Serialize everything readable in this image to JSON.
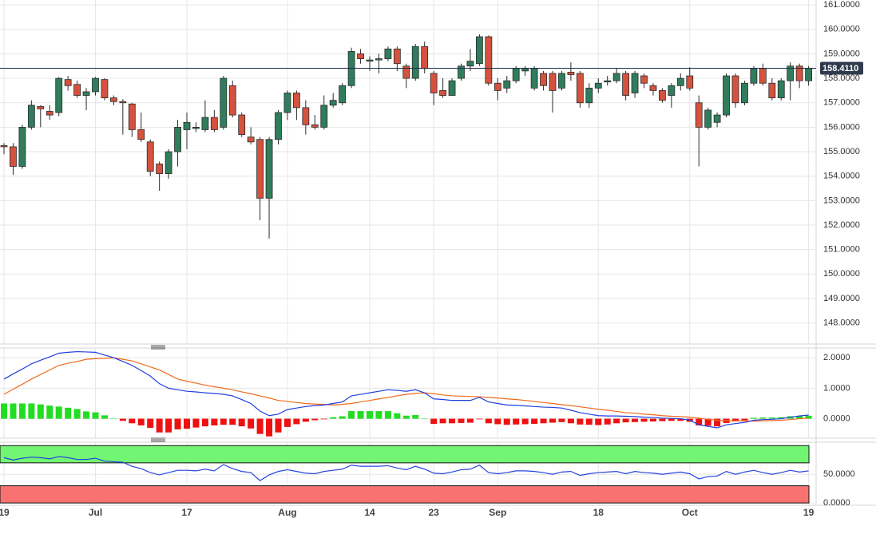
{
  "chart_data": [
    {
      "type": "candlestick",
      "categories": [
        "19",
        null,
        null,
        null,
        null,
        null,
        null,
        null,
        null,
        null,
        "Jul",
        null,
        null,
        null,
        null,
        null,
        null,
        null,
        null,
        null,
        "17",
        null,
        null,
        null,
        null,
        null,
        null,
        null,
        null,
        null,
        null,
        "Aug",
        null,
        null,
        null,
        null,
        null,
        null,
        null,
        null,
        "14",
        null,
        null,
        null,
        null,
        null,
        null,
        "23",
        null,
        null,
        null,
        null,
        null,
        null,
        "Sep",
        null,
        null,
        null,
        null,
        null,
        null,
        null,
        null,
        null,
        null,
        "18",
        null,
        null,
        null,
        null,
        null,
        null,
        null,
        null,
        null,
        "Oct",
        null,
        null,
        null,
        null,
        null,
        null,
        null,
        null,
        null,
        null,
        null,
        null,
        "19"
      ],
      "open": [
        155.25,
        155.2,
        154.4,
        156.0,
        156.85,
        156.65,
        156.6,
        157.95,
        157.75,
        157.3,
        157.45,
        157.95,
        157.2,
        157.05,
        156.95,
        155.9,
        155.4,
        154.5,
        154.1,
        155.0,
        155.9,
        155.95,
        155.9,
        156.4,
        156.0,
        157.7,
        156.5,
        155.6,
        155.5,
        153.1,
        155.5,
        156.6,
        157.4,
        156.8,
        156.1,
        156.0,
        156.9,
        157.0,
        157.7,
        159.0,
        158.7,
        158.75,
        158.8,
        159.2,
        158.5,
        158.0,
        159.3,
        158.2,
        157.5,
        157.3,
        158.0,
        158.5,
        158.6,
        159.7,
        157.8,
        157.6,
        157.9,
        158.3,
        157.6,
        158.2,
        158.2,
        157.6,
        158.25,
        158.2,
        157.0,
        157.6,
        157.85,
        157.9,
        158.2,
        157.4,
        158.1,
        157.7,
        157.5,
        157.3,
        157.7,
        158.1,
        157.0,
        156.0,
        156.2,
        156.5,
        158.1,
        157.0,
        157.8,
        158.4,
        157.8,
        157.2,
        157.9,
        158.5,
        157.9
      ],
      "high": [
        155.35,
        155.35,
        156.1,
        157.1,
        156.9,
        156.9,
        158.05,
        158.1,
        157.9,
        157.6,
        158.05,
        158.0,
        157.3,
        157.15,
        157.0,
        156.6,
        155.5,
        154.6,
        155.1,
        156.3,
        156.6,
        156.2,
        157.1,
        156.7,
        158.1,
        157.9,
        156.6,
        156.0,
        155.6,
        155.6,
        156.7,
        157.5,
        157.5,
        157.1,
        156.5,
        157.3,
        157.4,
        157.8,
        159.25,
        159.2,
        158.9,
        159.0,
        159.3,
        159.3,
        158.6,
        159.4,
        159.5,
        158.3,
        158.0,
        158.0,
        158.6,
        159.2,
        159.8,
        159.75,
        158.0,
        158.1,
        158.5,
        158.5,
        158.5,
        158.3,
        158.3,
        158.3,
        158.65,
        158.3,
        157.8,
        158.0,
        158.1,
        158.4,
        158.3,
        158.3,
        158.2,
        157.8,
        157.6,
        157.8,
        158.2,
        158.45,
        157.3,
        156.8,
        156.6,
        158.2,
        158.2,
        157.9,
        158.5,
        158.6,
        158.0,
        158.0,
        158.65,
        158.6,
        158.5
      ],
      "low": [
        154.9,
        154.05,
        154.3,
        155.9,
        156.0,
        156.3,
        156.45,
        157.5,
        157.2,
        156.7,
        157.3,
        157.1,
        156.9,
        155.7,
        155.6,
        155.4,
        154.0,
        153.4,
        153.9,
        154.4,
        155.1,
        155.8,
        155.8,
        155.8,
        155.9,
        156.4,
        155.6,
        155.3,
        152.2,
        151.45,
        155.3,
        156.3,
        156.3,
        155.7,
        155.9,
        155.9,
        156.8,
        156.9,
        157.6,
        158.6,
        158.3,
        158.2,
        158.7,
        158.3,
        157.6,
        157.9,
        158.2,
        156.9,
        157.2,
        157.3,
        157.9,
        158.3,
        158.5,
        157.7,
        157.1,
        157.4,
        157.8,
        158.1,
        157.5,
        157.5,
        156.6,
        157.5,
        157.9,
        156.8,
        156.8,
        157.4,
        157.7,
        157.8,
        157.1,
        157.2,
        157.6,
        157.3,
        157.0,
        156.8,
        157.5,
        157.5,
        154.4,
        155.9,
        156.0,
        156.4,
        156.8,
        156.9,
        157.7,
        157.7,
        157.1,
        157.1,
        157.1,
        157.6,
        157.7
      ],
      "close": [
        155.2,
        154.4,
        156.0,
        156.9,
        156.75,
        156.5,
        158.0,
        157.7,
        157.3,
        157.45,
        158.0,
        157.2,
        157.05,
        157.0,
        155.9,
        155.5,
        154.2,
        154.1,
        155.0,
        156.0,
        156.2,
        156.0,
        156.4,
        155.9,
        158.0,
        156.5,
        155.7,
        155.4,
        153.1,
        155.5,
        156.6,
        157.4,
        156.8,
        156.1,
        156.0,
        156.9,
        157.1,
        157.7,
        159.1,
        158.8,
        158.75,
        158.8,
        159.2,
        158.6,
        158.0,
        159.3,
        158.4,
        157.4,
        157.3,
        157.9,
        158.5,
        158.7,
        159.7,
        157.8,
        157.5,
        157.9,
        158.4,
        158.4,
        158.4,
        157.7,
        157.5,
        158.2,
        158.15,
        157.0,
        157.6,
        157.8,
        157.9,
        158.2,
        157.3,
        158.2,
        157.8,
        157.5,
        157.1,
        157.7,
        158.0,
        157.6,
        156.0,
        156.7,
        156.5,
        158.1,
        157.0,
        157.8,
        158.4,
        157.8,
        157.2,
        157.9,
        158.5,
        157.9,
        158.411
      ],
      "up_color": "#2f7d5c",
      "down_color": "#d5523e",
      "ylim": [
        147.14,
        161.2
      ],
      "yticks": [
        {
          "value": 148,
          "label": "148.0000"
        },
        {
          "value": 149,
          "label": "149.0000"
        },
        {
          "value": 150,
          "label": "150.0000"
        },
        {
          "value": 151,
          "label": "151.0000"
        },
        {
          "value": 152,
          "label": "152.0000"
        },
        {
          "value": 153,
          "label": "153.0000"
        },
        {
          "value": 154,
          "label": "154.0000"
        },
        {
          "value": 155,
          "label": "155.0000"
        },
        {
          "value": 156,
          "label": "156.0000"
        },
        {
          "value": 157,
          "label": "157.0000"
        },
        {
          "value": 158,
          "label": "158.0000"
        },
        {
          "value": 159,
          "label": "159.0000"
        },
        {
          "value": 160,
          "label": "160.0000"
        },
        {
          "value": 161,
          "label": "161.0000"
        }
      ],
      "grid": true,
      "last_price": {
        "value": 158.411,
        "label": "158.4110"
      }
    },
    {
      "type": "macd",
      "macd": {
        "color": "#1f3fe0",
        "values": [
          1.3,
          1.47,
          1.63,
          1.8,
          1.92,
          2.03,
          2.15,
          2.18,
          2.2,
          2.19,
          2.18,
          2.09,
          2.0,
          1.88,
          1.75,
          1.58,
          1.4,
          1.15,
          1.0,
          0.95,
          0.9,
          0.88,
          0.85,
          0.83,
          0.8,
          0.75,
          0.63,
          0.5,
          0.25,
          0.1,
          0.15,
          0.3,
          0.35,
          0.4,
          0.43,
          0.45,
          0.5,
          0.55,
          0.75,
          0.8,
          0.85,
          0.9,
          0.95,
          0.93,
          0.9,
          0.95,
          0.85,
          0.65,
          0.63,
          0.6,
          0.6,
          0.6,
          0.7,
          0.55,
          0.5,
          0.45,
          0.44,
          0.42,
          0.4,
          0.38,
          0.37,
          0.35,
          0.28,
          0.2,
          0.15,
          0.1,
          0.09,
          0.09,
          0.08,
          0.07,
          0.05,
          0.04,
          0.02,
          0.01,
          0.0,
          -0.05,
          -0.2,
          -0.25,
          -0.3,
          -0.2,
          -0.16,
          -0.12,
          -0.05,
          -0.03,
          -0.02,
          0.0,
          0.05,
          0.09,
          0.12
        ]
      },
      "signal": {
        "color": "#f06a1e",
        "values": [
          0.8,
          0.97,
          1.13,
          1.3,
          1.45,
          1.6,
          1.75,
          1.82,
          1.88,
          1.95,
          1.97,
          1.98,
          2.0,
          1.95,
          1.9,
          1.8,
          1.7,
          1.6,
          1.45,
          1.3,
          1.23,
          1.17,
          1.1,
          1.05,
          1.0,
          0.95,
          0.88,
          0.82,
          0.75,
          0.68,
          0.6,
          0.57,
          0.53,
          0.5,
          0.48,
          0.47,
          0.45,
          0.47,
          0.5,
          0.55,
          0.6,
          0.65,
          0.7,
          0.75,
          0.8,
          0.83,
          0.85,
          0.82,
          0.78,
          0.75,
          0.74,
          0.73,
          0.72,
          0.7,
          0.68,
          0.65,
          0.63,
          0.6,
          0.57,
          0.53,
          0.5,
          0.46,
          0.43,
          0.39,
          0.35,
          0.31,
          0.28,
          0.24,
          0.2,
          0.18,
          0.15,
          0.13,
          0.1,
          0.08,
          0.07,
          0.05,
          0.02,
          -0.02,
          -0.05,
          -0.06,
          -0.07,
          -0.07,
          -0.08,
          -0.07,
          -0.06,
          -0.05,
          -0.03,
          0.0,
          0.02
        ]
      },
      "histogram": {
        "up_color": "#22dd22",
        "down_color": "#ee1111",
        "values": [
          0.5,
          0.5,
          0.5,
          0.5,
          0.47,
          0.43,
          0.4,
          0.36,
          0.32,
          0.24,
          0.21,
          0.11,
          0.0,
          -0.07,
          -0.15,
          -0.22,
          -0.3,
          -0.45,
          -0.45,
          -0.35,
          -0.33,
          -0.29,
          -0.25,
          -0.22,
          -0.2,
          -0.2,
          -0.25,
          -0.32,
          -0.5,
          -0.58,
          -0.45,
          -0.27,
          -0.18,
          -0.1,
          -0.05,
          -0.02,
          0.05,
          0.08,
          0.25,
          0.25,
          0.25,
          0.25,
          0.25,
          0.18,
          0.1,
          0.12,
          0.0,
          -0.17,
          -0.15,
          -0.15,
          -0.14,
          -0.13,
          -0.02,
          -0.15,
          -0.18,
          -0.2,
          -0.19,
          -0.18,
          -0.17,
          -0.15,
          -0.13,
          -0.11,
          -0.15,
          -0.19,
          -0.2,
          -0.21,
          -0.19,
          -0.15,
          -0.12,
          -0.11,
          -0.1,
          -0.09,
          -0.08,
          -0.07,
          -0.07,
          -0.1,
          -0.22,
          -0.23,
          -0.25,
          -0.14,
          -0.09,
          -0.05,
          0.03,
          0.04,
          0.04,
          0.05,
          0.08,
          0.09,
          0.1
        ]
      },
      "ylim": [
        -0.64,
        2.32
      ],
      "yticks": [
        {
          "value": 0,
          "label": "0.0000"
        },
        {
          "value": 1,
          "label": "1.0000"
        },
        {
          "value": 2,
          "label": "2.0000"
        }
      ],
      "grid": true
    },
    {
      "type": "rsi",
      "color": "#2445dd",
      "values": [
        79,
        75,
        78,
        80,
        79,
        77,
        81,
        79,
        76,
        76,
        78,
        73,
        72,
        71,
        64,
        60,
        53,
        49,
        53,
        57,
        57,
        56,
        59,
        56,
        67,
        60,
        55,
        53,
        39,
        49,
        55,
        58,
        55,
        52,
        51,
        55,
        57,
        59,
        66,
        64,
        64,
        64,
        65,
        61,
        58,
        64,
        59,
        52,
        51,
        54,
        58,
        59,
        66,
        53,
        51,
        53,
        56,
        56,
        55,
        53,
        50,
        54,
        55,
        48,
        51,
        53,
        54,
        55,
        51,
        55,
        53,
        52,
        50,
        52,
        54,
        51,
        42,
        46,
        47,
        55,
        50,
        54,
        57,
        53,
        50,
        53,
        57,
        54,
        56
      ],
      "zones": [
        {
          "from": 70,
          "to": 100,
          "color": "#72f572"
        },
        {
          "from": 0,
          "to": 30,
          "color": "#f87272"
        }
      ],
      "ylim": [
        -4,
        106
      ],
      "yticks": [
        {
          "value": 0,
          "label": "0.0000"
        },
        {
          "value": 50,
          "label": "50.0000"
        }
      ],
      "grid": true
    }
  ]
}
